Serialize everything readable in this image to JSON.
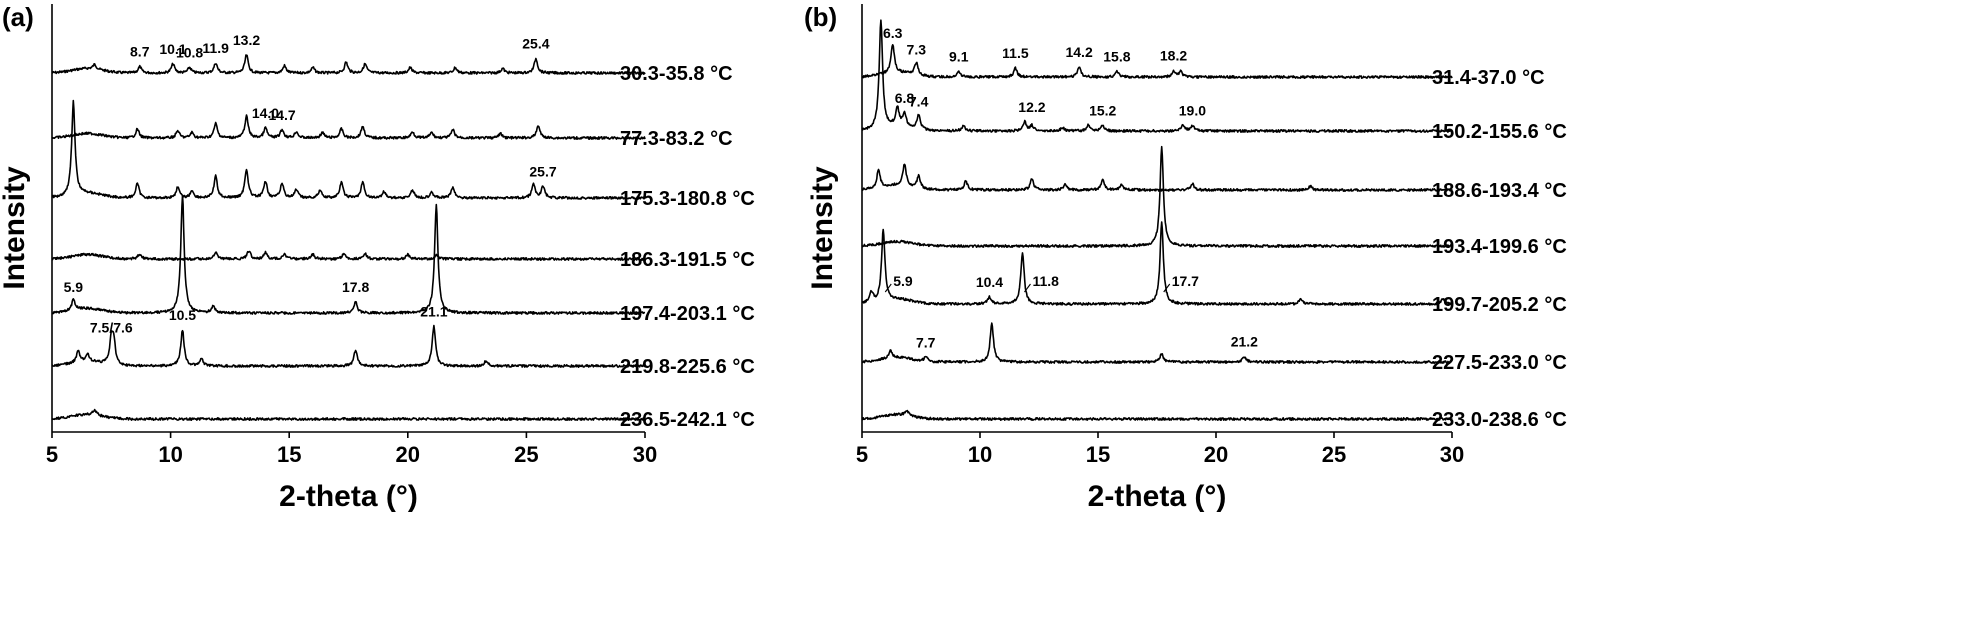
{
  "chart_data": [
    {
      "type": "line",
      "panel_label": "(a)",
      "xlabel": "2-theta (°)",
      "ylabel": "Intensity",
      "xlim": [
        5,
        30
      ],
      "xticks": [
        5,
        10,
        15,
        20,
        25,
        30
      ],
      "grid": false,
      "series": [
        {
          "name": "30.3-35.8 °C",
          "peaks": [
            [
              6.8,
              0.25
            ],
            [
              8.7,
              0.35
            ],
            [
              10.1,
              0.5
            ],
            [
              10.8,
              0.3
            ],
            [
              11.9,
              0.55
            ],
            [
              13.2,
              1.0
            ],
            [
              14.8,
              0.4
            ],
            [
              16.0,
              0.3
            ],
            [
              17.4,
              0.6
            ],
            [
              18.2,
              0.5
            ],
            [
              20.1,
              0.3
            ],
            [
              22.0,
              0.3
            ],
            [
              24.0,
              0.25
            ],
            [
              25.4,
              0.8
            ]
          ],
          "labels": [
            8.7,
            10.1,
            10.8,
            11.9,
            13.2,
            25.4
          ]
        },
        {
          "name": "77.3-83.2 °C",
          "peaks": [
            [
              8.6,
              0.5
            ],
            [
              10.3,
              0.4
            ],
            [
              10.9,
              0.3
            ],
            [
              11.9,
              0.8
            ],
            [
              13.2,
              1.2
            ],
            [
              14.0,
              0.55
            ],
            [
              14.7,
              0.45
            ],
            [
              15.3,
              0.35
            ],
            [
              16.4,
              0.3
            ],
            [
              17.2,
              0.5
            ],
            [
              18.1,
              0.65
            ],
            [
              20.2,
              0.35
            ],
            [
              21.0,
              0.3
            ],
            [
              21.9,
              0.45
            ],
            [
              23.9,
              0.25
            ],
            [
              25.5,
              0.7
            ]
          ],
          "labels": [
            14.0,
            14.7
          ]
        },
        {
          "name": "175.3-180.8 °C",
          "peaks": [
            [
              5.9,
              5.2
            ],
            [
              8.6,
              0.8
            ],
            [
              10.3,
              0.6
            ],
            [
              10.9,
              0.4
            ],
            [
              11.9,
              1.2
            ],
            [
              13.2,
              1.6
            ],
            [
              14.0,
              0.9
            ],
            [
              14.7,
              0.8
            ],
            [
              15.3,
              0.45
            ],
            [
              16.3,
              0.45
            ],
            [
              17.2,
              0.85
            ],
            [
              18.1,
              0.85
            ],
            [
              19.0,
              0.35
            ],
            [
              20.2,
              0.45
            ],
            [
              21.0,
              0.35
            ],
            [
              21.9,
              0.6
            ],
            [
              25.3,
              0.75
            ],
            [
              25.7,
              0.65
            ]
          ],
          "labels": [
            25.7
          ]
        },
        {
          "name": "186.3-191.5 °C",
          "peaks": [
            [
              8.7,
              0.3
            ],
            [
              11.9,
              0.35
            ],
            [
              13.3,
              0.45
            ],
            [
              14.0,
              0.35
            ],
            [
              14.8,
              0.3
            ],
            [
              16.0,
              0.25
            ],
            [
              17.3,
              0.3
            ],
            [
              18.2,
              0.3
            ],
            [
              20.0,
              0.25
            ],
            [
              21.2,
              0.2
            ]
          ],
          "labels": []
        },
        {
          "name": "197.4-203.1 °C",
          "peaks": [
            [
              5.9,
              0.6
            ],
            [
              10.5,
              6.5
            ],
            [
              11.8,
              0.4
            ],
            [
              17.8,
              0.6
            ],
            [
              21.2,
              6.0
            ]
          ],
          "labels": [
            5.9,
            17.8
          ]
        },
        {
          "name": "219.8-225.6 °C",
          "peaks": [
            [
              6.1,
              0.6
            ],
            [
              6.5,
              0.4
            ],
            [
              7.5,
              1.3
            ],
            [
              7.6,
              1.2
            ],
            [
              10.5,
              2.0
            ],
            [
              11.3,
              0.4
            ],
            [
              17.8,
              0.9
            ],
            [
              21.1,
              2.2
            ],
            [
              23.3,
              0.3
            ]
          ],
          "labels": [
            "7.5/7.6",
            10.5,
            21.1
          ]
        },
        {
          "name": "236.5-242.1 °C",
          "peaks": [
            [
              6.8,
              0.3
            ]
          ],
          "labels": []
        }
      ]
    },
    {
      "type": "line",
      "panel_label": "(b)",
      "xlabel": "2-theta (°)",
      "ylabel": "Intensity",
      "xlim": [
        5,
        30
      ],
      "xticks": [
        5,
        10,
        15,
        20,
        25,
        30
      ],
      "grid": false,
      "series": [
        {
          "name": "31.4-37.0 °C",
          "peaks": [
            [
              6.3,
              1.6
            ],
            [
              7.3,
              0.7
            ],
            [
              9.1,
              0.3
            ],
            [
              11.5,
              0.5
            ],
            [
              14.2,
              0.55
            ],
            [
              15.8,
              0.3
            ],
            [
              18.2,
              0.35
            ],
            [
              18.5,
              0.3
            ]
          ],
          "labels": [
            6.3,
            7.3,
            9.1,
            11.5,
            14.2,
            15.8,
            18.2
          ]
        },
        {
          "name": "150.2-155.6 °C",
          "peaks": [
            [
              5.8,
              6.0
            ],
            [
              6.5,
              1.0
            ],
            [
              6.8,
              0.7
            ],
            [
              7.4,
              0.8
            ],
            [
              9.3,
              0.3
            ],
            [
              11.9,
              0.5
            ],
            [
              12.2,
              0.3
            ],
            [
              13.5,
              0.2
            ],
            [
              14.6,
              0.35
            ],
            [
              15.2,
              0.3
            ],
            [
              18.6,
              0.35
            ],
            [
              19.0,
              0.3
            ]
          ],
          "labels": [
            6.8,
            7.4,
            12.2,
            15.2,
            19.0
          ]
        },
        {
          "name": "188.6-193.4 °C",
          "peaks": [
            [
              5.7,
              1.0
            ],
            [
              6.8,
              1.2
            ],
            [
              7.4,
              0.7
            ],
            [
              9.4,
              0.5
            ],
            [
              12.2,
              0.6
            ],
            [
              13.6,
              0.3
            ],
            [
              15.2,
              0.6
            ],
            [
              16.0,
              0.3
            ],
            [
              19.0,
              0.35
            ],
            [
              24.0,
              0.2
            ]
          ],
          "labels": []
        },
        {
          "name": "193.4-199.6 °C",
          "peaks": [
            [
              17.7,
              5.5
            ]
          ],
          "labels": []
        },
        {
          "name": "199.7-205.2 °C",
          "peaks": [
            [
              5.4,
              0.6
            ],
            [
              5.9,
              4.0
            ],
            [
              10.4,
              0.4
            ],
            [
              11.8,
              2.9
            ],
            [
              17.7,
              4.5
            ],
            [
              23.6,
              0.3
            ],
            [
              29.6,
              0.3
            ]
          ],
          "labels": [
            5.9,
            10.4,
            11.8,
            17.7
          ]
        },
        {
          "name": "227.5-233.0 °C",
          "peaks": [
            [
              6.2,
              0.4
            ],
            [
              7.7,
              0.25
            ],
            [
              10.5,
              2.1
            ],
            [
              17.7,
              0.45
            ],
            [
              21.2,
              0.3
            ]
          ],
          "labels": [
            7.7,
            21.2
          ]
        },
        {
          "name": "233.0-238.6 °C",
          "peaks": [
            [
              6.9,
              0.25
            ]
          ],
          "labels": []
        }
      ]
    }
  ]
}
